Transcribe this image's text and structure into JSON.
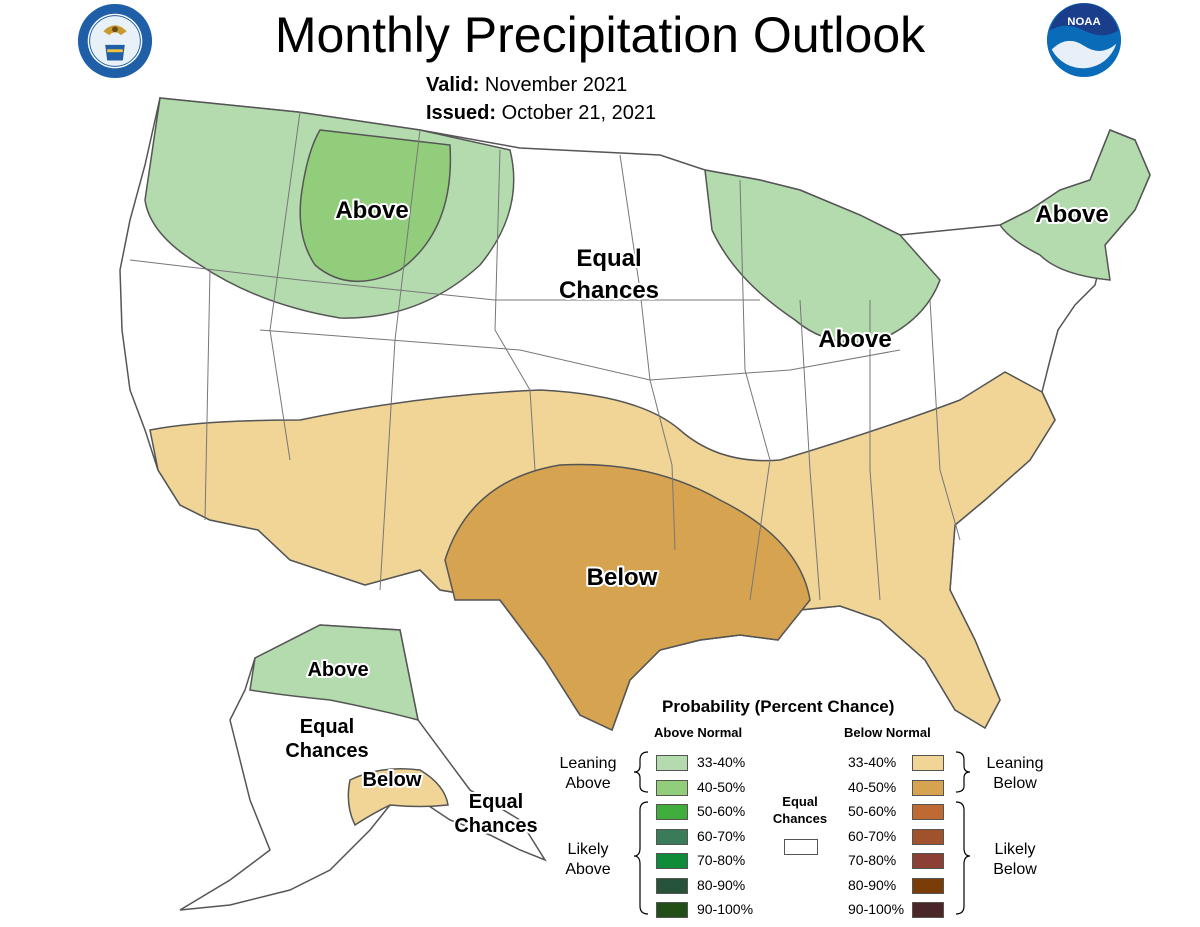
{
  "title": "Monthly Precipitation Outlook",
  "valid_label": "Valid:",
  "valid_value": "November 2021",
  "issued_label": "Issued:",
  "issued_value": "October 21, 2021",
  "logos": {
    "left": "department-of-commerce-seal",
    "right": "noaa-logo",
    "right_text": "NOAA"
  },
  "map_labels": {
    "nw_above": "Above",
    "ne_above": "Above",
    "glakes_above": "Above",
    "center_equal_1": "Equal",
    "center_equal_2": "Chances",
    "below": "Below",
    "ak_above": "Above",
    "ak_equal_1": "Equal",
    "ak_equal_2": "Chances",
    "ak_below": "Below",
    "ak_se_equal_1": "Equal",
    "ak_se_equal_2": "Chances"
  },
  "colors": {
    "above_33_40": "#b3dbae",
    "above_40_50": "#92cd7c",
    "below_33_40": "#f0d597",
    "below_40_50": "#d6a350"
  },
  "legend": {
    "title": "Probability (Percent Chance)",
    "above_header": "Above Normal",
    "below_header": "Below Normal",
    "equal_1": "Equal",
    "equal_2": "Chances",
    "leaning_above_1": "Leaning",
    "leaning_above_2": "Above",
    "likely_above_1": "Likely",
    "likely_above_2": "Above",
    "leaning_below_1": "Leaning",
    "leaning_below_2": "Below",
    "likely_below_1": "Likely",
    "likely_below_2": "Below",
    "above": [
      {
        "range": "33-40%",
        "color": "#b3dbae"
      },
      {
        "range": "40-50%",
        "color": "#92cd7c"
      },
      {
        "range": "50-60%",
        "color": "#3fae3c"
      },
      {
        "range": "60-70%",
        "color": "#3a7c59"
      },
      {
        "range": "70-80%",
        "color": "#0e8c3a"
      },
      {
        "range": "80-90%",
        "color": "#27533a"
      },
      {
        "range": "90-100%",
        "color": "#224e17"
      }
    ],
    "below": [
      {
        "range": "33-40%",
        "color": "#f0d597"
      },
      {
        "range": "40-50%",
        "color": "#d6a350"
      },
      {
        "range": "50-60%",
        "color": "#bf6a33"
      },
      {
        "range": "60-70%",
        "color": "#a0522d"
      },
      {
        "range": "70-80%",
        "color": "#8b3f35"
      },
      {
        "range": "80-90%",
        "color": "#7a3d08"
      },
      {
        "range": "90-100%",
        "color": "#4a2628"
      }
    ]
  }
}
